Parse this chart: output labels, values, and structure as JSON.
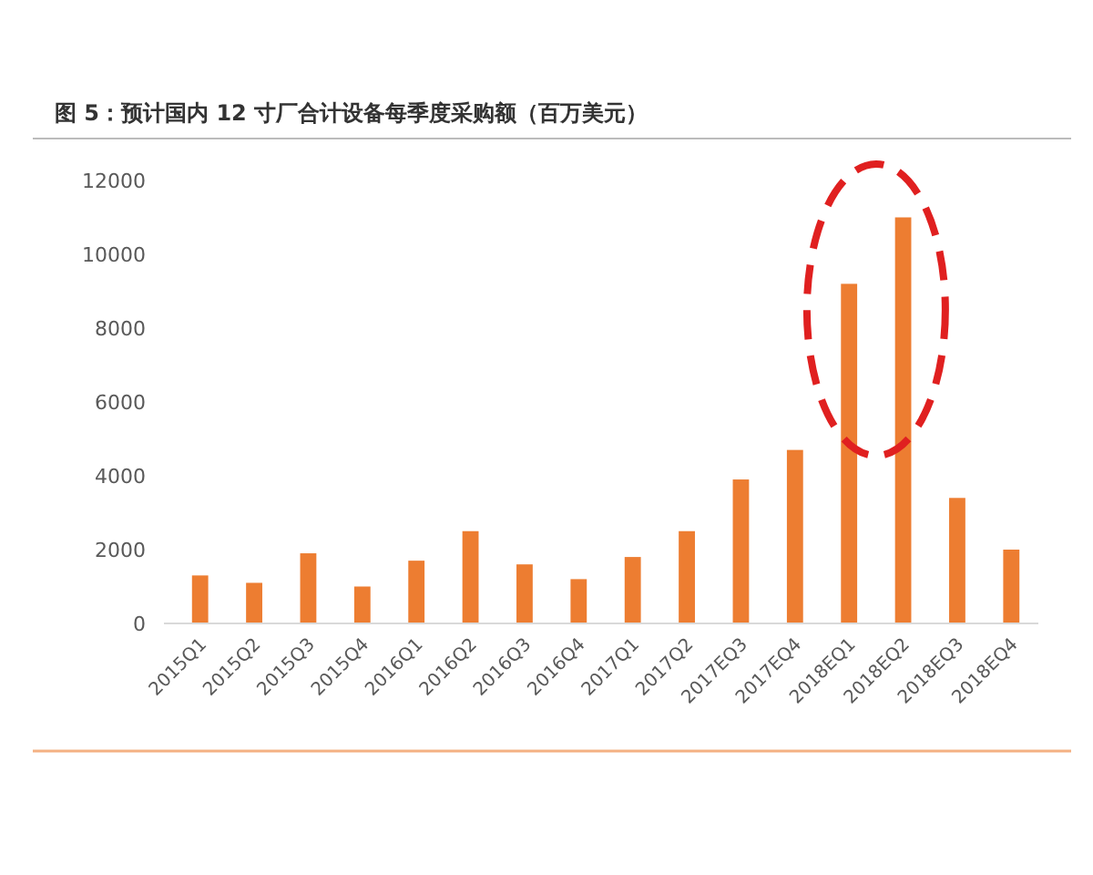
{
  "chart_data": {
    "type": "bar",
    "title": "图 5：预计国内 12 寸厂合计设备每季度采购额（百万美元）",
    "categories": [
      "2015Q1",
      "2015Q2",
      "2015Q3",
      "2015Q4",
      "2016Q1",
      "2016Q2",
      "2016Q3",
      "2016Q4",
      "2017Q1",
      "2017Q2",
      "2017EQ3",
      "2017EQ4",
      "2018EQ1",
      "2018EQ2",
      "2018EQ3",
      "2018EQ4"
    ],
    "values": [
      1300,
      1100,
      1900,
      1000,
      1700,
      2500,
      1600,
      1200,
      1800,
      2500,
      3900,
      4700,
      9200,
      11000,
      3400,
      2000
    ],
    "color": "#ed7d31",
    "ylim": [
      0,
      12000
    ],
    "yticks": [
      0,
      2000,
      4000,
      6000,
      8000,
      10000,
      12000
    ],
    "grid": false
  }
}
